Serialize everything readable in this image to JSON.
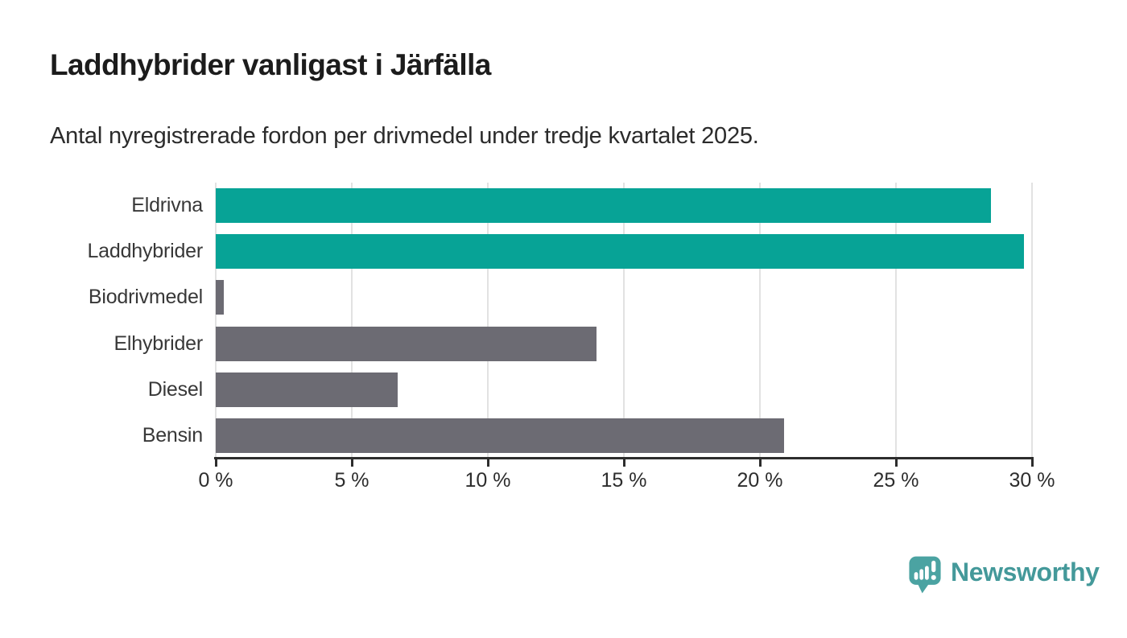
{
  "header": {
    "title": "Laddhybrider vanligast i Järfälla",
    "subtitle": "Antal nyregistrerade fordon per drivmedel under tredje kvartalet 2025."
  },
  "chart_data": {
    "type": "bar",
    "orientation": "horizontal",
    "title": "Laddhybrider vanligast i Järfälla",
    "subtitle": "Antal nyregistrerade fordon per drivmedel under tredje kvartalet 2025.",
    "categories": [
      "Eldrivna",
      "Laddhybrider",
      "Biodrivmedel",
      "Elhybrider",
      "Diesel",
      "Bensin"
    ],
    "values": [
      28.5,
      29.7,
      0.3,
      14.0,
      6.7,
      20.9
    ],
    "unit": "%",
    "xlabel": "",
    "ylabel": "",
    "xlim": [
      0,
      30
    ],
    "x_ticks": [
      0,
      5,
      10,
      15,
      20,
      25,
      30
    ],
    "x_tick_labels": [
      "0 %",
      "5 %",
      "10 %",
      "15 %",
      "20 %",
      "25 %",
      "30 %"
    ],
    "bar_colors": [
      "#07a396",
      "#07a396",
      "#6c6b73",
      "#6c6b73",
      "#6c6b73",
      "#6c6b73"
    ],
    "grid": true,
    "gridline_color": "#e2e2e2",
    "axis_color": "#2d2d2d",
    "legend": "none"
  },
  "colors": {
    "accent_teal": "#07a396",
    "bar_gray": "#6c6b73",
    "title_text": "#1c1c1c",
    "label_text": "#383838",
    "background": "#ffffff"
  },
  "branding": {
    "logo_text": "Newsworthy",
    "logo_text_color": "#44999a",
    "logo_icon_color": "#4ba3a2",
    "logo_icon": "newsworthy-speech-bubble-barchart-icon"
  }
}
